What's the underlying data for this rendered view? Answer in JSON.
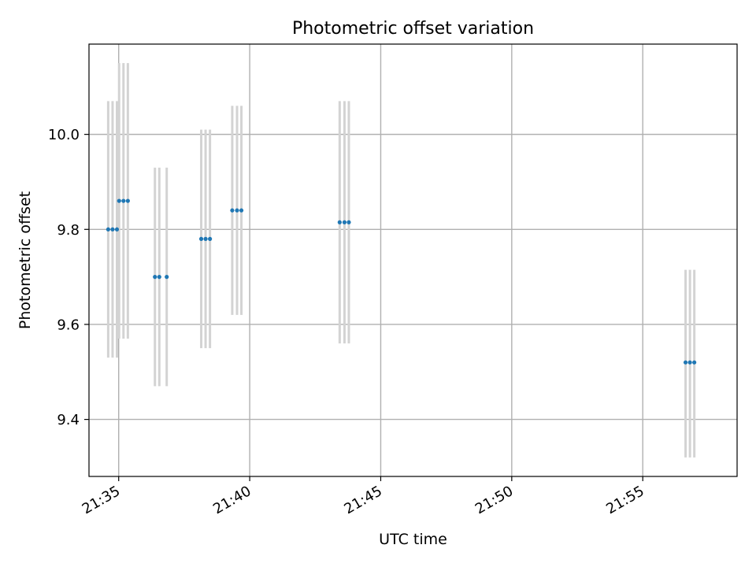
{
  "chart_data": {
    "type": "scatter",
    "title": "Photometric offset variation",
    "xlabel": "UTC time",
    "ylabel": "Photometric offset",
    "x_tick_labels": [
      "21:35",
      "21:40",
      "21:45",
      "21:50",
      "21:55"
    ],
    "x_ticks": [
      "21:35",
      "21:40",
      "21:45",
      "21:50",
      "21:55"
    ],
    "y_ticks": [
      9.4,
      9.6,
      9.8,
      10.0
    ],
    "y_tick_labels": [
      "9.4",
      "9.6",
      "9.8",
      "10.0"
    ],
    "xlim": [
      "21:33:52",
      "21:58:36"
    ],
    "ylim": [
      9.28,
      10.19
    ],
    "grid": true,
    "colors": {
      "marker": "#1f77b4",
      "errorbar": "#d3d3d3",
      "grid": "#b0b0b0",
      "axis": "#000000"
    },
    "series": [
      {
        "points": [
          {
            "x": "21:34:36",
            "y": 9.8,
            "y_low": 9.53,
            "y_high": 10.07
          },
          {
            "x": "21:34:46",
            "y": 9.8,
            "y_low": 9.53,
            "y_high": 10.07
          },
          {
            "x": "21:34:56",
            "y": 9.8,
            "y_low": 9.53,
            "y_high": 10.07
          },
          {
            "x": "21:35:01",
            "y": 9.86,
            "y_low": 9.57,
            "y_high": 10.15
          },
          {
            "x": "21:35:11",
            "y": 9.86,
            "y_low": 9.57,
            "y_high": 10.15
          },
          {
            "x": "21:35:21",
            "y": 9.86,
            "y_low": 9.57,
            "y_high": 10.15
          },
          {
            "x": "21:36:23",
            "y": 9.7,
            "y_low": 9.47,
            "y_high": 9.93
          },
          {
            "x": "21:36:33",
            "y": 9.7,
            "y_low": 9.47,
            "y_high": 9.93
          },
          {
            "x": "21:36:50",
            "y": 9.7,
            "y_low": 9.47,
            "y_high": 9.93
          },
          {
            "x": "21:38:09",
            "y": 9.78,
            "y_low": 9.55,
            "y_high": 10.01
          },
          {
            "x": "21:38:19",
            "y": 9.78,
            "y_low": 9.55,
            "y_high": 10.01
          },
          {
            "x": "21:38:29",
            "y": 9.78,
            "y_low": 9.55,
            "y_high": 10.01
          },
          {
            "x": "21:39:20",
            "y": 9.84,
            "y_low": 9.62,
            "y_high": 10.06
          },
          {
            "x": "21:39:31",
            "y": 9.84,
            "y_low": 9.62,
            "y_high": 10.06
          },
          {
            "x": "21:39:41",
            "y": 9.84,
            "y_low": 9.62,
            "y_high": 10.06
          },
          {
            "x": "21:43:26",
            "y": 9.815,
            "y_low": 9.56,
            "y_high": 10.07
          },
          {
            "x": "21:43:37",
            "y": 9.815,
            "y_low": 9.56,
            "y_high": 10.07
          },
          {
            "x": "21:43:47",
            "y": 9.815,
            "y_low": 9.56,
            "y_high": 10.07
          },
          {
            "x": "21:56:38",
            "y": 9.52,
            "y_low": 9.32,
            "y_high": 9.715
          },
          {
            "x": "21:56:48",
            "y": 9.52,
            "y_low": 9.32,
            "y_high": 9.715
          },
          {
            "x": "21:56:58",
            "y": 9.52,
            "y_low": 9.32,
            "y_high": 9.715
          }
        ]
      }
    ]
  }
}
